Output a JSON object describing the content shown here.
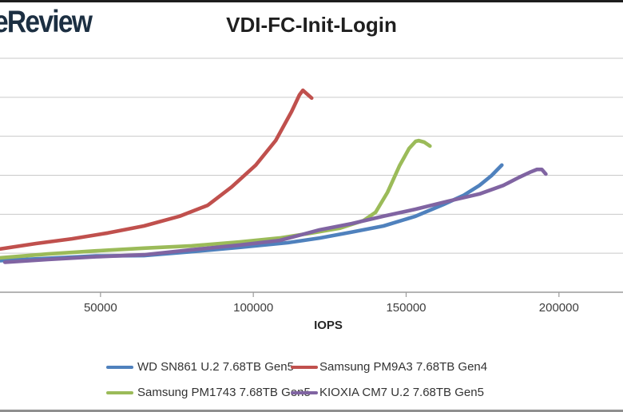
{
  "logo": {
    "text": "eReview",
    "color": "#1c2f42"
  },
  "title": "VDI-FC-Init-Login",
  "chart_data": {
    "type": "line",
    "title": "VDI-FC-Init-Login",
    "xlabel": "IOPS",
    "ylabel": "",
    "x_ticks": [
      50000,
      100000,
      150000,
      200000
    ],
    "x_tick_labels": [
      "50000",
      "100000",
      "150000",
      "200000"
    ],
    "xlim_visible": [
      17000,
      221000
    ],
    "ylim": [
      0,
      6.2
    ],
    "grid": "horizontal-only",
    "legend_position": "bottom",
    "note": "Left portion of chart (y-axis scale/labels) is cropped out of frame; y values given in gridline units above the x-axis (1 unit = one horizontal gridline spacing)",
    "series": [
      {
        "name": "WD SN861 U.2 7.68TB Gen5",
        "color": "#4F81BD",
        "points": [
          [
            17100,
            0.81
          ],
          [
            32800,
            0.87
          ],
          [
            48500,
            0.93
          ],
          [
            64200,
            0.94
          ],
          [
            79800,
            1.04
          ],
          [
            95500,
            1.15
          ],
          [
            111200,
            1.27
          ],
          [
            121700,
            1.39
          ],
          [
            132100,
            1.54
          ],
          [
            142600,
            1.7
          ],
          [
            153100,
            1.95
          ],
          [
            162200,
            2.25
          ],
          [
            168700,
            2.48
          ],
          [
            174000,
            2.74
          ],
          [
            177900,
            2.99
          ],
          [
            181300,
            3.26
          ]
        ]
      },
      {
        "name": "Samsung PM9A3 7.68TB Gen4",
        "color": "#C0504D",
        "points": [
          [
            17100,
            1.11
          ],
          [
            28900,
            1.25
          ],
          [
            40600,
            1.37
          ],
          [
            52400,
            1.52
          ],
          [
            64200,
            1.7
          ],
          [
            75900,
            1.95
          ],
          [
            85100,
            2.23
          ],
          [
            92900,
            2.7
          ],
          [
            100800,
            3.26
          ],
          [
            107300,
            3.89
          ],
          [
            112500,
            4.63
          ],
          [
            115100,
            5.06
          ],
          [
            116200,
            5.18
          ],
          [
            119100,
            4.98
          ]
        ]
      },
      {
        "name": "Samsung PM1743 7.68TB Gen5",
        "color": "#9BBB59",
        "points": [
          [
            17100,
            0.88
          ],
          [
            32800,
            0.98
          ],
          [
            48500,
            1.06
          ],
          [
            64200,
            1.13
          ],
          [
            79800,
            1.19
          ],
          [
            95500,
            1.29
          ],
          [
            108600,
            1.39
          ],
          [
            119100,
            1.52
          ],
          [
            128200,
            1.64
          ],
          [
            136100,
            1.84
          ],
          [
            140000,
            2.05
          ],
          [
            143900,
            2.56
          ],
          [
            147800,
            3.24
          ],
          [
            151000,
            3.69
          ],
          [
            153100,
            3.87
          ],
          [
            154100,
            3.89
          ],
          [
            155900,
            3.85
          ],
          [
            157800,
            3.75
          ]
        ]
      },
      {
        "name": "KIOXIA CM7 U.2 7.68TB Gen5",
        "color": "#8064A2",
        "points": [
          [
            18700,
            0.77
          ],
          [
            32800,
            0.84
          ],
          [
            48500,
            0.91
          ],
          [
            64200,
            0.96
          ],
          [
            79800,
            1.09
          ],
          [
            95500,
            1.21
          ],
          [
            108600,
            1.33
          ],
          [
            121700,
            1.6
          ],
          [
            132100,
            1.76
          ],
          [
            142600,
            1.95
          ],
          [
            153100,
            2.13
          ],
          [
            163500,
            2.33
          ],
          [
            174000,
            2.52
          ],
          [
            181800,
            2.74
          ],
          [
            187000,
            2.95
          ],
          [
            190900,
            3.09
          ],
          [
            192800,
            3.15
          ],
          [
            194400,
            3.15
          ],
          [
            195700,
            3.03
          ]
        ]
      }
    ],
    "style": {
      "gridline_color": "#C9C9C9",
      "axis_color": "#9B9B9B",
      "line_width": 4.6
    }
  }
}
